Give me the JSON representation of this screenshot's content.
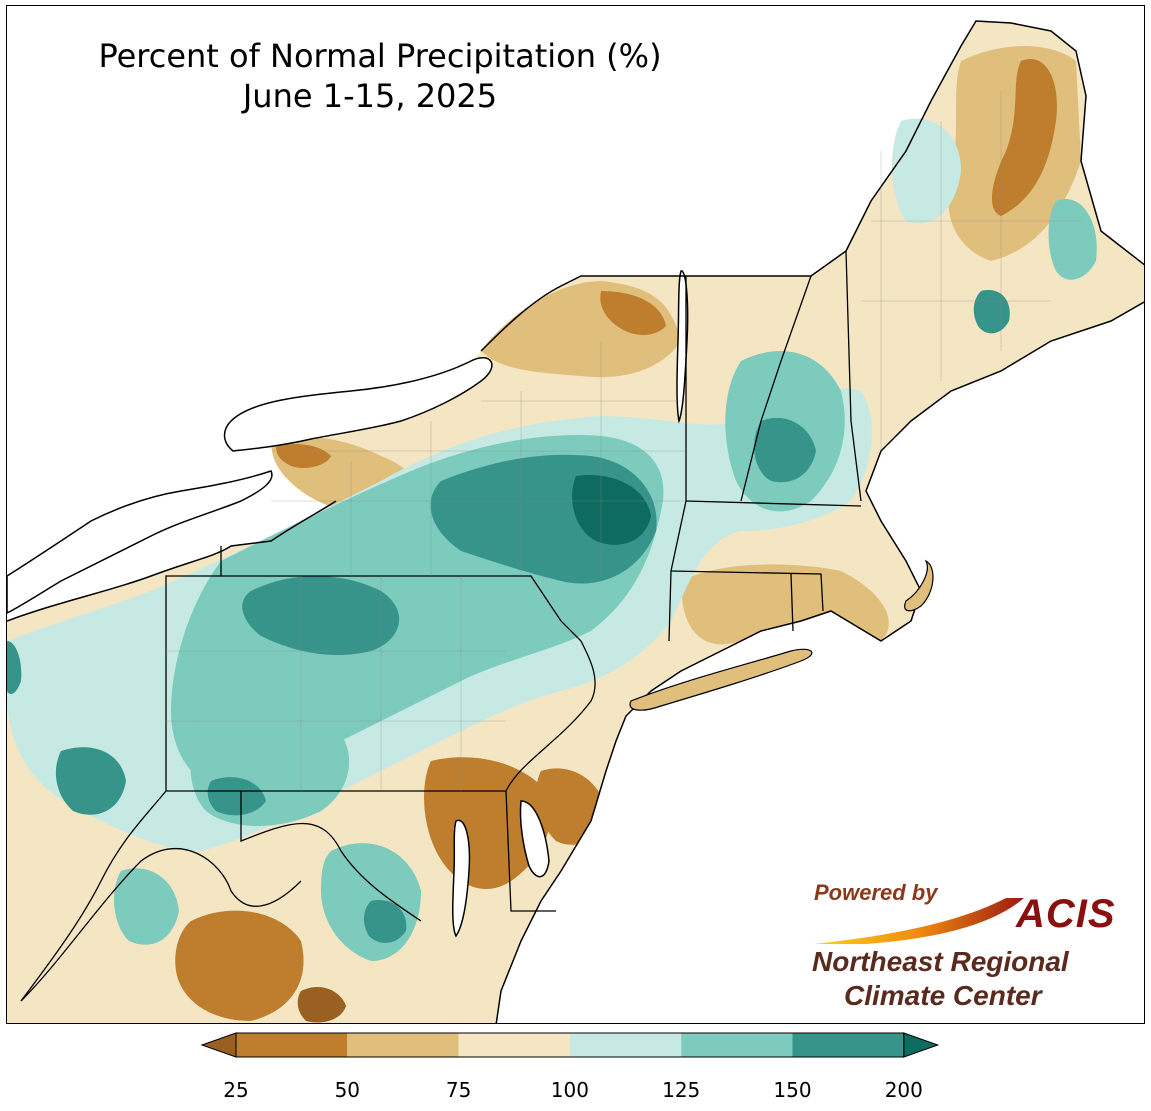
{
  "title": {
    "line1": "Percent of Normal Precipitation (%)",
    "line2": "June 1-15, 2025"
  },
  "logo": {
    "powered_by": "Powered by",
    "acis": "ACIS",
    "org_line1": "Northeast Regional",
    "org_line2": "Climate Center"
  },
  "colorbar": {
    "ticks": [
      "25",
      "50",
      "75",
      "100",
      "125",
      "150",
      "200"
    ],
    "colors": [
      "#bf7e2e",
      "#e0bf7c",
      "#f5e6c3",
      "#c6eae3",
      "#7dcbbd",
      "#37948a"
    ],
    "under_color": "#9a6021",
    "over_color": "#0e6b60"
  },
  "map_colors": {
    "water": "#ffffff",
    "land_base": "#f5e6c3",
    "boundary": "#000000"
  }
}
